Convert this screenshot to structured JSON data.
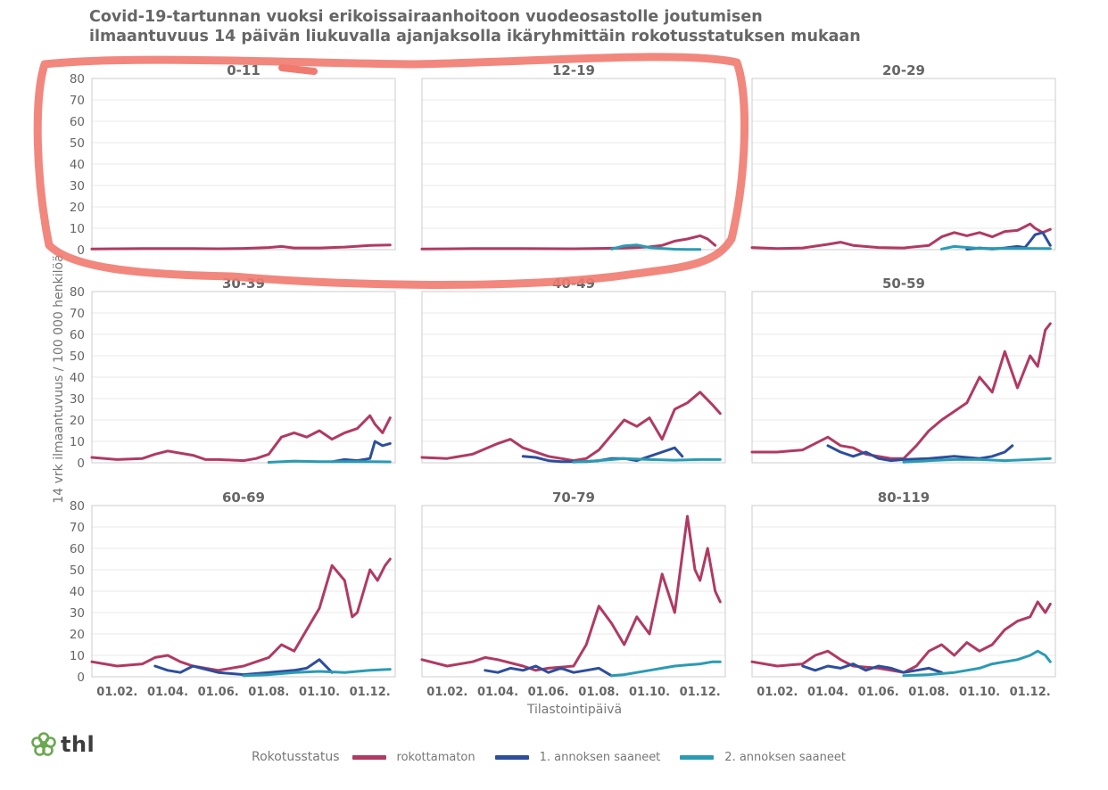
{
  "title": {
    "line1": "Covid-19-tartunnan vuoksi erikoissairaanhoitoon vuodeosastolle joutumisen",
    "line2": "ilmaantuvuus 14 päivän liukuvalla ajanjaksolla ikäryhmittäin rokotusstatuksen mukaan"
  },
  "colors": {
    "rokottamaton": "#b03a62",
    "annos1": "#2d4e9c",
    "annos2": "#2a9bb3",
    "grid": "#e8e8e8",
    "annotation": "#f07a6f"
  },
  "logo": {
    "text": "thl",
    "icon": "flower-logo-icon"
  },
  "legend": {
    "title": "Rokotusstatus",
    "items": [
      {
        "label": "rokottamaton",
        "color": "#b03a62"
      },
      {
        "label": "1. annoksen saaneet",
        "color": "#2d4e9c"
      },
      {
        "label": "2. annoksen saaneet",
        "color": "#2a9bb3"
      }
    ]
  },
  "chart_data": {
    "type": "line",
    "layout": "small-multiples 3x3",
    "ylabel": "14 vrk ilmaantuvuus / 100 000 henkilöä",
    "xlabel": "Tilastointipäivä",
    "ylim": [
      0,
      80
    ],
    "yticks": [
      0,
      10,
      20,
      30,
      40,
      50,
      60,
      70,
      80
    ],
    "xlim": [
      0,
      12
    ],
    "x_unit": "months since 01.01",
    "xtick_positions": [
      1,
      3,
      5,
      7,
      9,
      11
    ],
    "xtick_labels": [
      "01.02.",
      "01.04.",
      "01.06.",
      "01.08.",
      "01.10.",
      "01.12."
    ],
    "annotation": "hand-drawn red outline around panels 0-11 and 12-19",
    "panels": [
      {
        "name": "0-11",
        "series": [
          {
            "name": "rokottamaton",
            "x": [
              0,
              1,
              2,
              3,
              4,
              5,
              6,
              7,
              7.5,
              8,
              9,
              10,
              11,
              11.8
            ],
            "values": [
              0.3,
              0.4,
              0.5,
              0.5,
              0.5,
              0.4,
              0.6,
              1,
              1.5,
              0.8,
              0.8,
              1.2,
              2,
              2.2
            ]
          }
        ]
      },
      {
        "name": "12-19",
        "series": [
          {
            "name": "rokottamaton",
            "x": [
              0,
              2,
              4,
              6,
              7,
              8,
              8.5,
              9,
              9.5,
              10,
              10.5,
              11,
              11.3,
              11.6
            ],
            "values": [
              0.3,
              0.5,
              0.5,
              0.4,
              0.6,
              0.8,
              1,
              1.3,
              2,
              4,
              5,
              6.5,
              5,
              2
            ]
          },
          {
            "name": "2. annoksen saaneet",
            "x": [
              7.5,
              8,
              8.5,
              9,
              9.5,
              10,
              10.5,
              11
            ],
            "values": [
              0.3,
              1.8,
              2.2,
              1,
              0.6,
              0.2,
              0.1,
              0.1
            ]
          }
        ]
      },
      {
        "name": "20-29",
        "series": [
          {
            "name": "rokottamaton",
            "x": [
              0,
              1,
              2,
              3,
              3.5,
              4,
              5,
              6,
              7,
              7.5,
              8,
              8.5,
              9,
              9.5,
              10,
              10.5,
              11,
              11.2,
              11.5,
              11.8
            ],
            "values": [
              1,
              0.5,
              0.8,
              2.5,
              3.5,
              2,
              1,
              0.8,
              2,
              6,
              8,
              6.5,
              8,
              6,
              8.5,
              9,
              12,
              10,
              8,
              9.5
            ]
          },
          {
            "name": "1. annoksen saaneet",
            "x": [
              8.5,
              9,
              9.5,
              10,
              10.5,
              10.8,
              11,
              11.2,
              11.5,
              11.8
            ],
            "values": [
              0.2,
              0.8,
              0.3,
              0.8,
              1.5,
              1,
              4,
              7,
              8,
              2
            ]
          },
          {
            "name": "2. annoksen saaneet",
            "x": [
              7.5,
              8,
              9,
              10,
              11,
              11.8
            ],
            "values": [
              0.3,
              1.5,
              0.6,
              0.6,
              0.6,
              0.5
            ]
          }
        ]
      },
      {
        "name": "30-39",
        "series": [
          {
            "name": "rokottamaton",
            "x": [
              0,
              1,
              2,
              2.5,
              3,
              4,
              4.5,
              5,
              6,
              6.5,
              7,
              7.5,
              8,
              8.5,
              9,
              9.5,
              10,
              10.5,
              11,
              11.2,
              11.5,
              11.8
            ],
            "values": [
              2.5,
              1.5,
              2,
              4,
              5.5,
              3.5,
              1.5,
              1.5,
              1,
              2,
              4,
              12,
              14,
              12,
              15,
              11,
              14,
              16,
              22,
              18,
              14,
              21
            ]
          },
          {
            "name": "1. annoksen saaneet",
            "x": [
              9.5,
              10,
              10.5,
              11,
              11.2,
              11.5,
              11.8
            ],
            "values": [
              0.5,
              1.5,
              1,
              2,
              10,
              8,
              9
            ]
          },
          {
            "name": "2. annoksen saaneet",
            "x": [
              7,
              8,
              9,
              10,
              11,
              11.8
            ],
            "values": [
              0.2,
              0.8,
              0.5,
              0.5,
              0.5,
              0.4
            ]
          }
        ]
      },
      {
        "name": "40-49",
        "series": [
          {
            "name": "rokottamaton",
            "x": [
              0,
              1,
              2,
              3,
              3.5,
              4,
              5,
              6,
              6.5,
              7,
              7.5,
              8,
              8.5,
              9,
              9.5,
              10,
              10.5,
              11,
              11.5,
              11.8
            ],
            "values": [
              2.5,
              2,
              4,
              9,
              11,
              7,
              3,
              1,
              2,
              6,
              13,
              20,
              17,
              21,
              11,
              25,
              28,
              33,
              27,
              23
            ]
          },
          {
            "name": "1. annoksen saaneet",
            "x": [
              4,
              4.5,
              5,
              5.5,
              6,
              6.5,
              7,
              7.5,
              8,
              8.5,
              9,
              9.5,
              10,
              10.3
            ],
            "values": [
              3,
              2.5,
              1,
              0.5,
              0.5,
              0.5,
              1,
              2,
              2,
              1,
              3,
              5,
              7,
              3
            ]
          },
          {
            "name": "2. annoksen saaneet",
            "x": [
              6,
              7,
              8,
              9,
              10,
              11,
              11.8
            ],
            "values": [
              0.3,
              1,
              2,
              1.5,
              1.2,
              1.5,
              1.5
            ]
          }
        ]
      },
      {
        "name": "50-59",
        "series": [
          {
            "name": "rokottamaton",
            "x": [
              0,
              1,
              2,
              3,
              3.5,
              4,
              4.5,
              5,
              5.5,
              6,
              6.5,
              7,
              7.5,
              8,
              8.5,
              9,
              9.5,
              10,
              10.5,
              11,
              11.3,
              11.6,
              11.8
            ],
            "values": [
              5,
              5,
              6,
              12,
              8,
              7,
              4,
              3,
              2,
              2,
              8,
              15,
              20,
              24,
              28,
              40,
              33,
              52,
              35,
              50,
              45,
              62,
              65
            ]
          },
          {
            "name": "1. annoksen saaneet",
            "x": [
              3,
              3.5,
              4,
              4.5,
              5,
              5.5,
              6,
              7,
              8,
              9,
              9.5,
              10,
              10.3
            ],
            "values": [
              8,
              5,
              3,
              5,
              2,
              1,
              1.5,
              2,
              3,
              2,
              3,
              5,
              8
            ]
          },
          {
            "name": "2. annoksen saaneet",
            "x": [
              6,
              7,
              8,
              9,
              10,
              11,
              11.8
            ],
            "values": [
              0.3,
              1,
              1.5,
              1.5,
              1,
              1.5,
              2
            ]
          }
        ]
      },
      {
        "name": "60-69",
        "series": [
          {
            "name": "rokottamaton",
            "x": [
              0,
              1,
              2,
              2.5,
              3,
              3.5,
              4,
              5,
              6,
              6.5,
              7,
              7.5,
              8,
              8.5,
              9,
              9.5,
              10,
              10.3,
              10.5,
              11,
              11.3,
              11.6,
              11.8
            ],
            "values": [
              7,
              5,
              6,
              9,
              10,
              7,
              5,
              3,
              5,
              7,
              9,
              15,
              12,
              22,
              32,
              52,
              45,
              28,
              30,
              50,
              45,
              52,
              55
            ]
          },
          {
            "name": "1. annoksen saaneet",
            "x": [
              2.5,
              3,
              3.5,
              4,
              5,
              6,
              7,
              8,
              8.5,
              9,
              9.5
            ],
            "values": [
              5,
              3,
              2,
              5,
              2,
              1,
              2,
              3,
              4,
              8,
              2
            ]
          },
          {
            "name": "2. annoksen saaneet",
            "x": [
              6,
              7,
              8,
              9,
              10,
              11,
              11.8
            ],
            "values": [
              0.5,
              1,
              2,
              2.5,
              2,
              3,
              3.5
            ]
          }
        ]
      },
      {
        "name": "70-79",
        "series": [
          {
            "name": "rokottamaton",
            "x": [
              0,
              1,
              2,
              2.5,
              3,
              4,
              4.5,
              5,
              6,
              6.5,
              7,
              7.5,
              8,
              8.5,
              9,
              9.5,
              10,
              10.5,
              10.8,
              11,
              11.3,
              11.6,
              11.8
            ],
            "values": [
              8,
              5,
              7,
              9,
              8,
              5,
              3,
              4,
              5,
              15,
              33,
              25,
              15,
              28,
              20,
              48,
              30,
              75,
              50,
              45,
              60,
              40,
              35
            ]
          },
          {
            "name": "1. annoksen saaneet",
            "x": [
              2.5,
              3,
              3.5,
              4,
              4.5,
              5,
              5.5,
              6,
              6.5,
              7,
              7.5
            ],
            "values": [
              3,
              2,
              4,
              3,
              5,
              2,
              4,
              2,
              3,
              4,
              0.5
            ]
          },
          {
            "name": "2. annoksen saaneet",
            "x": [
              7.5,
              8,
              8.5,
              9,
              9.5,
              10,
              10.5,
              11,
              11.5,
              11.8
            ],
            "values": [
              0.5,
              1,
              2,
              3,
              4,
              5,
              5.5,
              6,
              7,
              7
            ]
          }
        ]
      },
      {
        "name": "80-119",
        "series": [
          {
            "name": "rokottamaton",
            "x": [
              0,
              1,
              2,
              2.5,
              3,
              3.5,
              4,
              5,
              6,
              6.5,
              7,
              7.5,
              8,
              8.5,
              9,
              9.5,
              10,
              10.5,
              11,
              11.3,
              11.6,
              11.8
            ],
            "values": [
              7,
              5,
              6,
              10,
              12,
              8,
              5,
              4,
              2,
              5,
              12,
              15,
              10,
              16,
              12,
              15,
              22,
              26,
              28,
              35,
              30,
              34
            ]
          },
          {
            "name": "1. annoksen saaneet",
            "x": [
              2,
              2.5,
              3,
              3.5,
              4,
              4.5,
              5,
              5.5,
              6,
              6.5,
              7,
              7.5
            ],
            "values": [
              5,
              3,
              5,
              4,
              6,
              3,
              5,
              4,
              2,
              3,
              4,
              2
            ]
          },
          {
            "name": "2. annoksen saaneet",
            "x": [
              6,
              7,
              8,
              8.5,
              9,
              9.5,
              10,
              10.5,
              11,
              11.3,
              11.6,
              11.8
            ],
            "values": [
              0.5,
              1,
              2,
              3,
              4,
              6,
              7,
              8,
              10,
              12,
              10,
              7
            ]
          }
        ]
      }
    ]
  }
}
